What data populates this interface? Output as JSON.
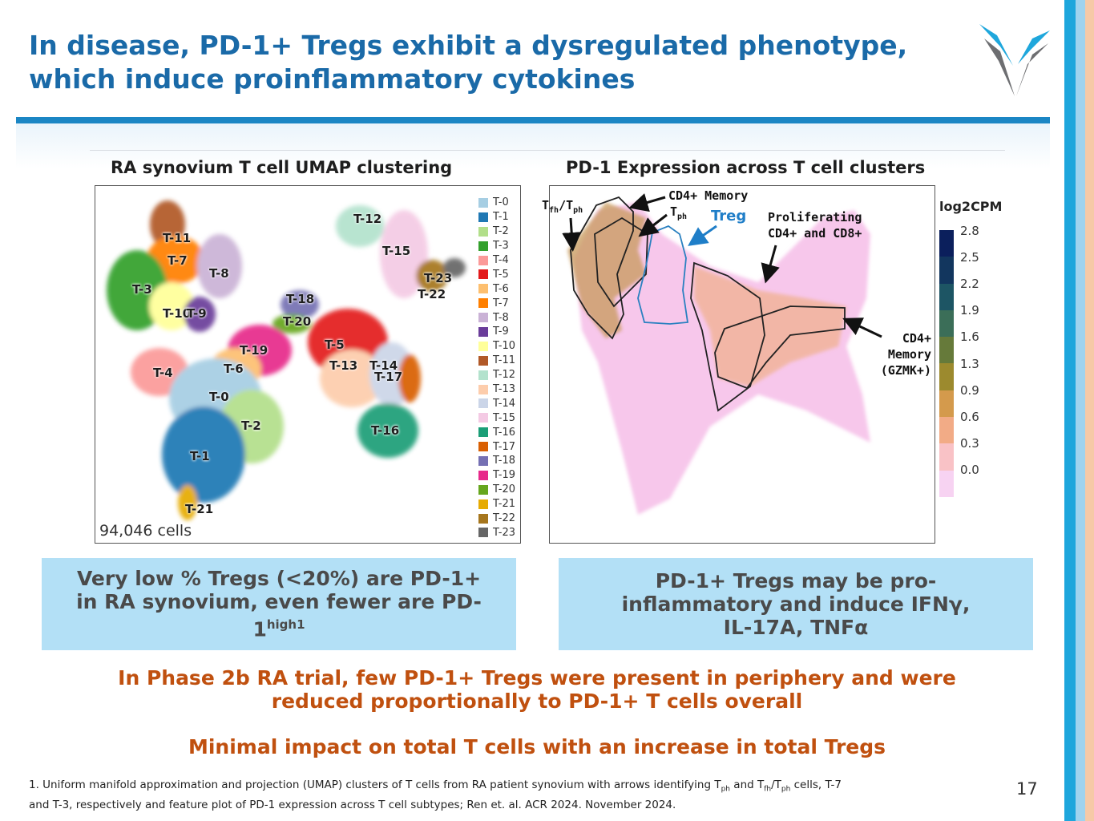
{
  "slide": {
    "title_line1": "In disease, PD-1+ Tregs exhibit a dysregulated phenotype,",
    "title_line2": "which induce proinflammatory cytokines",
    "page_number": "17"
  },
  "umap_panel": {
    "title": "RA synovium T cell UMAP clustering",
    "cell_count": "94,046 cells",
    "clusters": [
      {
        "label": "T-0",
        "color": "#a6cee3"
      },
      {
        "label": "T-1",
        "color": "#1f78b4"
      },
      {
        "label": "T-2",
        "color": "#b2df8a"
      },
      {
        "label": "T-3",
        "color": "#33a02c"
      },
      {
        "label": "T-4",
        "color": "#fb9a99"
      },
      {
        "label": "T-5",
        "color": "#e31a1c"
      },
      {
        "label": "T-6",
        "color": "#fdbf6f"
      },
      {
        "label": "T-7",
        "color": "#ff7f00"
      },
      {
        "label": "T-8",
        "color": "#cab2d6"
      },
      {
        "label": "T-9",
        "color": "#6a3d9a"
      },
      {
        "label": "T-10",
        "color": "#ffff99"
      },
      {
        "label": "T-11",
        "color": "#b15928"
      },
      {
        "label": "T-12",
        "color": "#b3e2cd"
      },
      {
        "label": "T-13",
        "color": "#fdcdac"
      },
      {
        "label": "T-14",
        "color": "#cbd5e8"
      },
      {
        "label": "T-15",
        "color": "#f4cae4"
      },
      {
        "label": "T-16",
        "color": "#1b9e77"
      },
      {
        "label": "T-17",
        "color": "#d95f02"
      },
      {
        "label": "T-18",
        "color": "#7570b3"
      },
      {
        "label": "T-19",
        "color": "#e7298a"
      },
      {
        "label": "T-20",
        "color": "#66a61e"
      },
      {
        "label": "T-21",
        "color": "#e6ab02"
      },
      {
        "label": "T-22",
        "color": "#a6761d"
      },
      {
        "label": "T-23",
        "color": "#666666"
      }
    ]
  },
  "pd1_panel": {
    "title": "PD-1 Expression across T cell clusters",
    "annotations": {
      "tfh_main": "T",
      "tfh_sub": "fh",
      "tfh_slash": "/T",
      "tfh_sub2": "ph",
      "cd4_memory": "CD4+ Memory",
      "tph_main": "T",
      "tph_sub": "ph",
      "treg": "Treg",
      "proliferating_line1": "Proliferating",
      "proliferating_line2": "CD4+ and CD8+",
      "gzmk_line1": "CD4+",
      "gzmk_line2": "Memory",
      "gzmk_line3": "(GZMK+)"
    },
    "colorbar": {
      "title": "log2CPM",
      "ticks": [
        "2.8",
        "2.5",
        "2.2",
        "1.9",
        "1.6",
        "1.3",
        "0.9",
        "0.6",
        "0.3",
        "0.0"
      ],
      "colors": [
        "#0b1f5c",
        "#12365e",
        "#1d5564",
        "#3b6e58",
        "#667a3a",
        "#9c8a2e",
        "#d49a4c",
        "#f2ab86",
        "#f9c2c6",
        "#f7d3f2"
      ]
    }
  },
  "callouts": {
    "left_line1": "Very low % Tregs (<20%) are PD-1+",
    "left_line2": "in RA synovium, even fewer are PD-",
    "left_line3": "1",
    "left_sup": "high1",
    "right_line1": "PD-1+ Tregs may be pro-",
    "right_line2": "inflammatory and induce IFNγ,",
    "right_line3": "IL-17A, TNFα"
  },
  "conclusions": {
    "line1": "In Phase 2b RA trial, few PD-1+ Tregs were present in periphery and were",
    "line2": "reduced proportionally to PD-1+ T cells overall",
    "line3": "Minimal impact on total T cells with an increase in total Tregs"
  },
  "footnote": {
    "part1": "1. Uniform manifold approximation and projection (UMAP) clusters of T cells from RA patient synovium with arrows identifying T",
    "sub1": "ph",
    "part2": " and T",
    "sub2": "fh",
    "part3": "/T",
    "sub3": "ph",
    "part4": " cells, T-7",
    "line2": "and T-3, respectively and feature plot of PD-1 expression across T cell subtypes; Ren et. al. ACR 2024. November 2024."
  }
}
